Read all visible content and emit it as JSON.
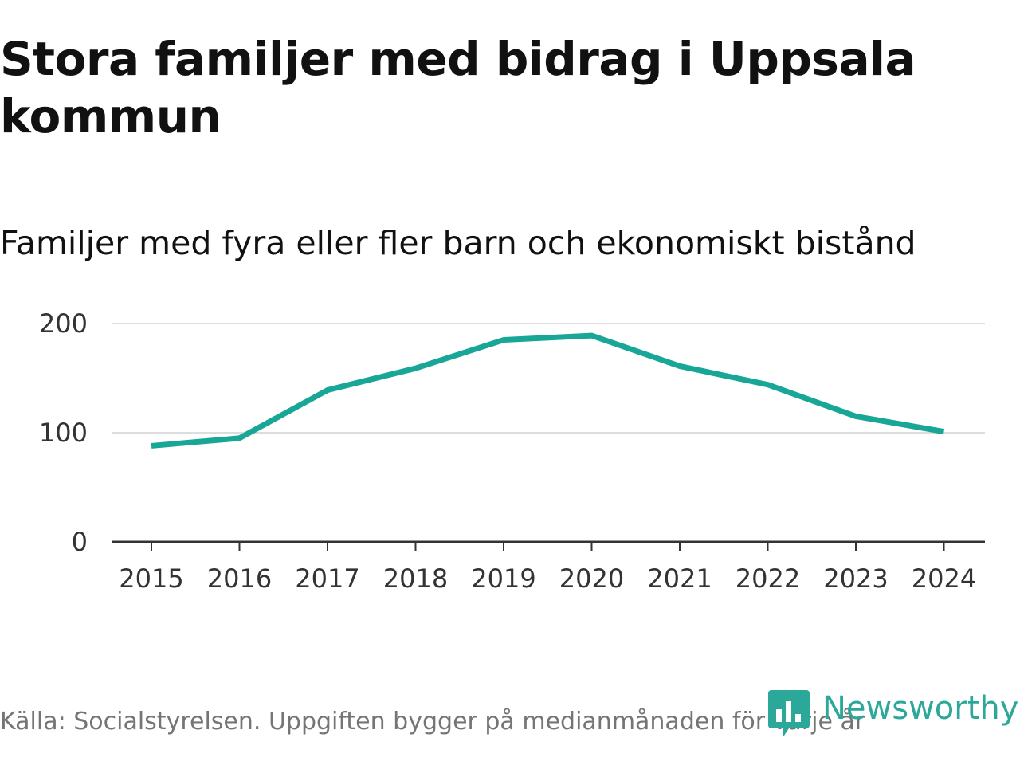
{
  "header": {
    "title": "Stora familjer med bidrag i Uppsala kommun",
    "subtitle": "Familjer med fyra eller fler barn och ekonomiskt bistånd"
  },
  "footer": {
    "source": "Källa: Socialstyrelsen. Uppgiften bygger på medianmånaden för varje år",
    "brand": "Newsworthy"
  },
  "colors": {
    "line": "#18a697",
    "grid": "#dddddd",
    "axis": "#333333",
    "brand": "#2ba89a"
  },
  "chart_data": {
    "type": "line",
    "title": "Stora familjer med bidrag i Uppsala kommun",
    "subtitle": "Familjer med fyra eller fler barn och ekonomiskt bistånd",
    "xlabel": "",
    "ylabel": "",
    "categories": [
      "2015",
      "2016",
      "2017",
      "2018",
      "2019",
      "2020",
      "2021",
      "2022",
      "2023",
      "2024"
    ],
    "series": [
      {
        "name": "Familjer med fyra eller fler barn och ekonomiskt bistånd",
        "values": [
          88,
          95,
          139,
          159,
          185,
          189,
          161,
          144,
          115,
          101
        ]
      }
    ],
    "yticks": [
      "0",
      "100",
      "200"
    ],
    "ylim": [
      0,
      200
    ],
    "grid": true,
    "legend": "none"
  }
}
